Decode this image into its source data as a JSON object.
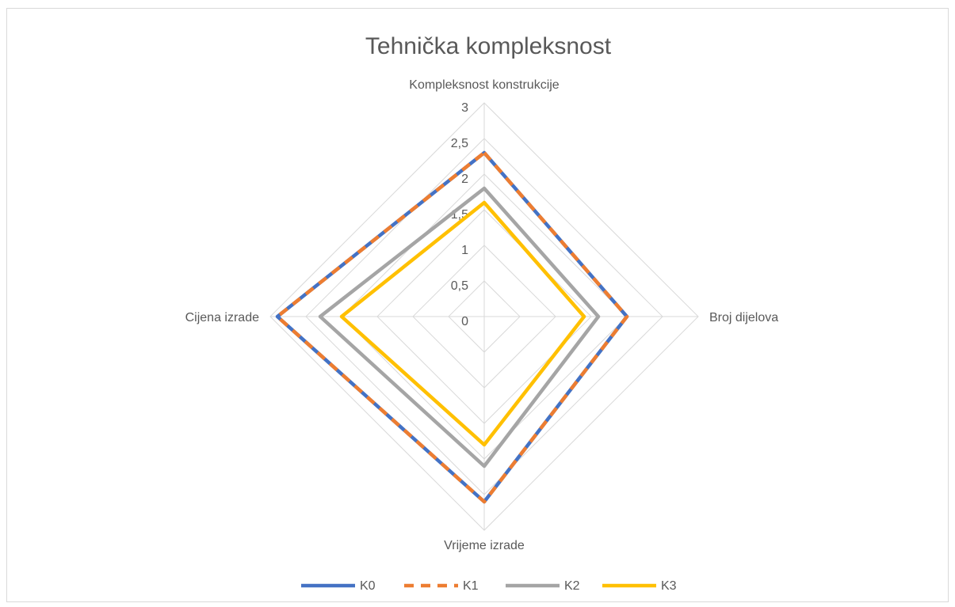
{
  "chart_data": {
    "type": "radar",
    "title": "Tehnička kompleksnost",
    "categories": [
      "Kompleksnost konstrukcije",
      "Broj dijelova",
      "Vrijeme izrade",
      "Cijena izrade"
    ],
    "series": [
      {
        "name": "K0",
        "color": "#4472c4",
        "values": [
          2.3,
          2,
          2.6,
          2.9
        ]
      },
      {
        "name": "K1",
        "color": "#ed7d31",
        "dashed": true,
        "values": [
          2.3,
          2,
          2.6,
          2.9
        ]
      },
      {
        "name": "K2",
        "color": "#a5a5a5",
        "values": [
          1.8,
          1.6,
          2.1,
          2.3
        ]
      },
      {
        "name": "K3",
        "color": "#ffc000",
        "values": [
          1.6,
          1.4,
          1.8,
          2
        ]
      }
    ],
    "ylim": [
      0,
      3
    ],
    "yticks": [
      0,
      {
        "value": 0.5,
        "label": "0,5"
      },
      1,
      {
        "value": 1.5,
        "label": "1,5"
      },
      2,
      {
        "value": 2.5,
        "label": "2,5"
      },
      3
    ],
    "grid": true,
    "legend": "bottom"
  }
}
